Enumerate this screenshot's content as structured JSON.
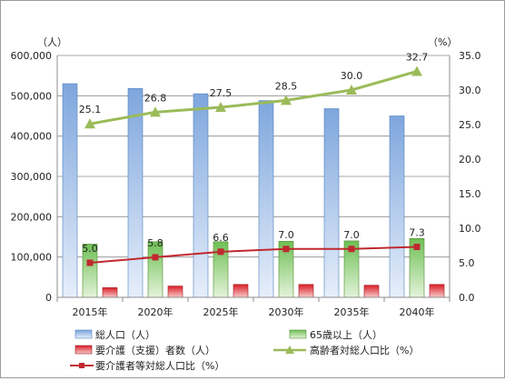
{
  "chart_data": {
    "type": "bar",
    "categories": [
      "2015年",
      "2020年",
      "2025年",
      "2030年",
      "2035年",
      "2040年"
    ],
    "y_left": {
      "unit": "（人）",
      "min": 0,
      "max": 600000,
      "step": 100000,
      "ticks": [
        "0",
        "100,000",
        "200,000",
        "300,000",
        "400,000",
        "500,000",
        "600,000"
      ]
    },
    "y_right": {
      "unit": "（%）",
      "min": 0,
      "max": 35,
      "step": 5,
      "ticks": [
        "0.0",
        "5.0",
        "10.0",
        "15.0",
        "20.0",
        "25.0",
        "30.0",
        "35.0"
      ]
    },
    "grid": true,
    "legend_position": "bottom",
    "series": [
      {
        "name": "総人口（人）",
        "kind": "bar",
        "axis": "left",
        "color": "#8db3e2",
        "values": [
          530000,
          518000,
          505000,
          488000,
          468000,
          450000
        ]
      },
      {
        "name": "65歳以上（人）",
        "kind": "bar",
        "axis": "left",
        "color": "#9bd07e",
        "values": [
          132000,
          138000,
          138000,
          139000,
          140000,
          146000
        ]
      },
      {
        "name": "要介護（支援）者数（人）",
        "kind": "bar",
        "axis": "left",
        "color": "#e0484a",
        "values": [
          24000,
          28000,
          32000,
          32000,
          30000,
          32000
        ]
      },
      {
        "name": "高齢者対総人口比（%）",
        "kind": "line",
        "axis": "right",
        "color": "#9bbb59",
        "marker": "triangle",
        "values": [
          25.1,
          26.8,
          27.5,
          28.5,
          30.0,
          32.7
        ],
        "labels": [
          "25.1",
          "26.8",
          "27.5",
          "28.5",
          "30.0",
          "32.7"
        ]
      },
      {
        "name": "要介護者等対総人口比（%）",
        "kind": "line",
        "axis": "right",
        "color": "#c0282f",
        "marker": "square",
        "values": [
          5.0,
          5.8,
          6.6,
          7.0,
          7.0,
          7.3
        ],
        "labels": [
          "5.0",
          "5.8",
          "6.6",
          "7.0",
          "7.0",
          "7.3"
        ]
      }
    ]
  }
}
